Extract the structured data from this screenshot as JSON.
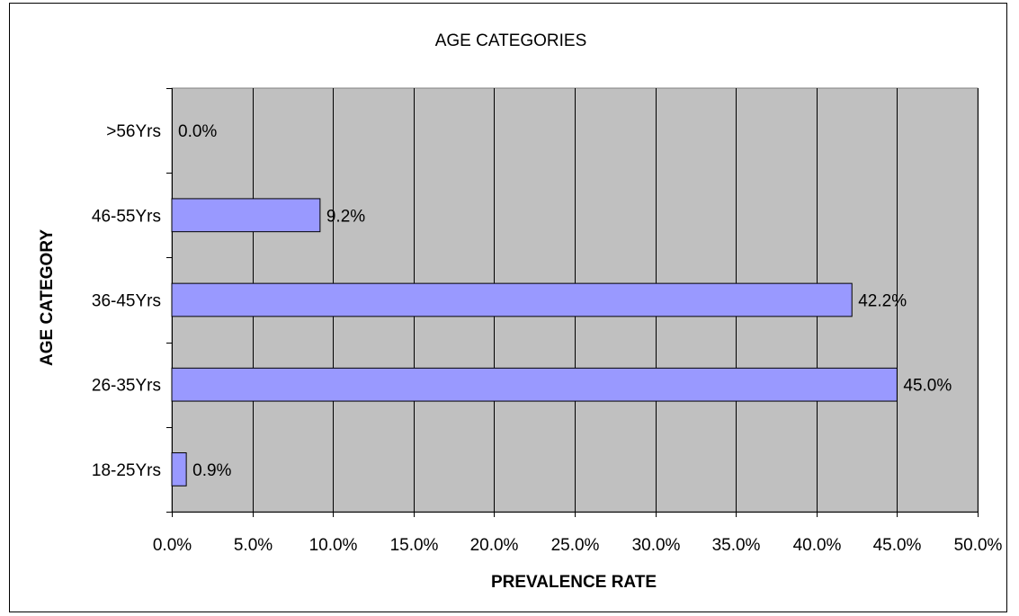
{
  "chart_data": {
    "type": "bar",
    "orientation": "horizontal",
    "title": "AGE CATEGORIES",
    "xlabel": "PREVALENCE RATE",
    "ylabel": "AGE CATEGORY",
    "categories": [
      "18-25Yrs",
      "26-35Yrs",
      "36-45Yrs",
      "46-55Yrs",
      ">56Yrs"
    ],
    "values": [
      0.9,
      45.0,
      42.2,
      9.2,
      0.0
    ],
    "data_labels": [
      "0.9%",
      "45.0%",
      "42.2%",
      "9.2%",
      "0.0%"
    ],
    "xlim": [
      0,
      50
    ],
    "x_ticks": [
      0,
      5,
      10,
      15,
      20,
      25,
      30,
      35,
      40,
      45,
      50
    ],
    "x_tick_labels": [
      "0.0%",
      "5.0%",
      "10.0%",
      "15.0%",
      "20.0%",
      "25.0%",
      "30.0%",
      "35.0%",
      "40.0%",
      "45.0%",
      "50.0%"
    ],
    "grid": true,
    "legend": false,
    "colors": {
      "bar_fill": "#9999ff",
      "bar_stroke": "#000000",
      "plot_background": "#c0c0c0",
      "gridline": "#000000"
    }
  }
}
